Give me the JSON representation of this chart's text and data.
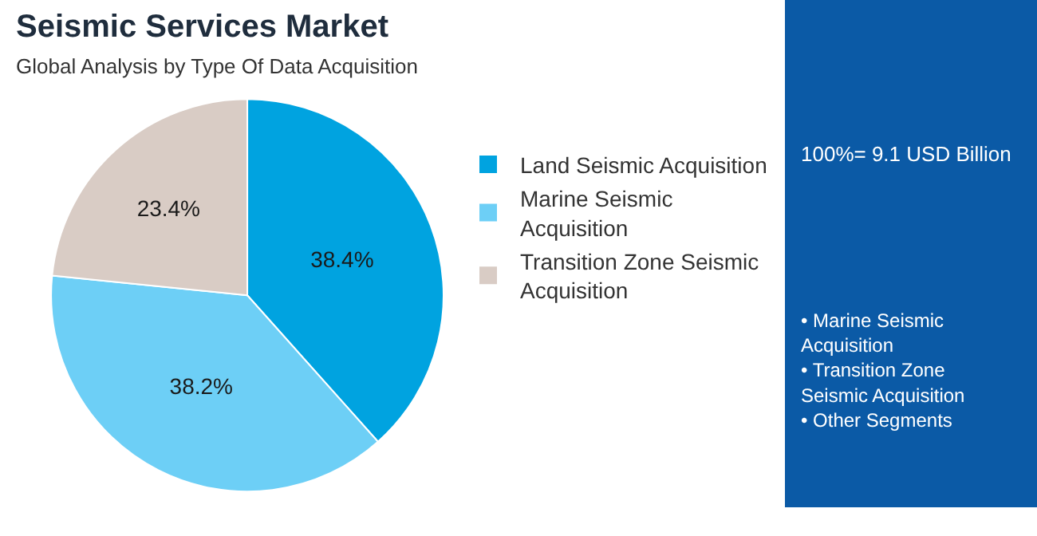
{
  "chart_data": {
    "type": "pie",
    "title": "Seismic Services Market",
    "subtitle": "Global Analysis by Type Of Data Acquisition",
    "categories": [
      "Land Seismic Acquisition",
      "Marine Seismic Acquisition",
      "Transition Zone Seismic Acquisition"
    ],
    "values": [
      38.4,
      38.2,
      23.4
    ],
    "value_labels": [
      "38.4%",
      "38.2%",
      "23.4%"
    ],
    "colors": [
      "#00a3e0",
      "#6dcff6",
      "#d9ccc5"
    ],
    "legend": "right",
    "annotations": [
      "100%= 9.1 USD Billion",
      "• Marine Seismic Acquisition",
      "• Transition Zone Seismic Acquisition",
      "• Other Segments"
    ]
  }
}
